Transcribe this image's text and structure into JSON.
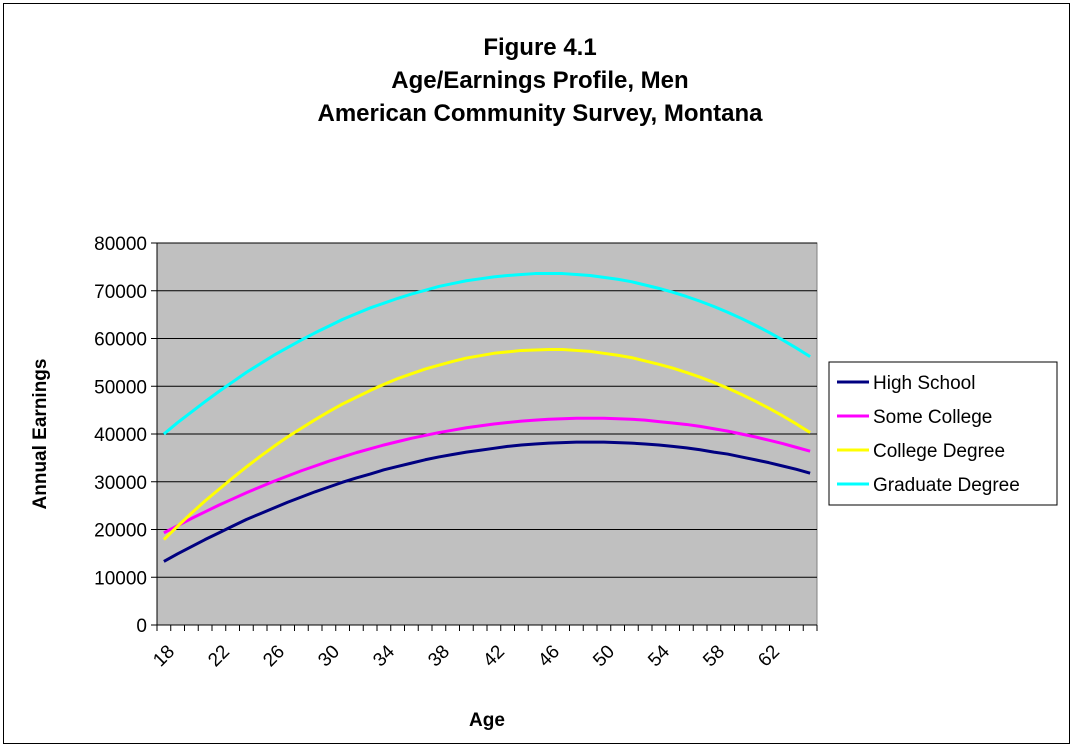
{
  "chart_data": {
    "type": "line",
    "title": [
      "Figure 4.1",
      "Age/Earnings Profile, Men",
      "American Community Survey, Montana"
    ],
    "xlabel": "Age",
    "ylabel": "Annual Earnings",
    "categories": [
      18,
      null,
      null,
      null,
      22,
      null,
      null,
      null,
      26,
      null,
      null,
      null,
      30,
      null,
      null,
      null,
      34,
      null,
      null,
      null,
      38,
      null,
      null,
      null,
      42,
      null,
      null,
      null,
      46,
      null,
      null,
      null,
      50,
      null,
      null,
      null,
      54,
      null,
      null,
      null,
      58,
      null,
      null,
      null,
      62,
      null,
      null,
      null
    ],
    "series": [
      {
        "name": "High School",
        "color": "#000080",
        "values": [
          13300,
          14900,
          16400,
          17900,
          19300,
          20700,
          22100,
          23300,
          24500,
          25700,
          26800,
          27900,
          28900,
          29900,
          30800,
          31600,
          32500,
          33200,
          33900,
          34600,
          35200,
          35700,
          36200,
          36600,
          37000,
          37400,
          37700,
          37900,
          38100,
          38200,
          38300,
          38300,
          38300,
          38200,
          38100,
          37900,
          37700,
          37400,
          37100,
          36700,
          36200,
          35800,
          35200,
          34600,
          34000,
          33300,
          32600,
          31800
        ]
      },
      {
        "name": "Some College",
        "color": "#ff00ff",
        "values": [
          19300,
          20800,
          22300,
          23700,
          25100,
          26400,
          27700,
          28900,
          30100,
          31200,
          32300,
          33300,
          34300,
          35200,
          36100,
          36900,
          37700,
          38400,
          39100,
          39700,
          40300,
          40800,
          41300,
          41700,
          42100,
          42400,
          42700,
          42900,
          43100,
          43200,
          43300,
          43300,
          43300,
          43200,
          43100,
          42900,
          42600,
          42300,
          42000,
          41600,
          41100,
          40600,
          40000,
          39400,
          38700,
          38000,
          37200,
          36400
        ]
      },
      {
        "name": "College Degree",
        "color": "#ffff00",
        "values": [
          17900,
          20700,
          23400,
          26000,
          28400,
          30800,
          33100,
          35300,
          37400,
          39400,
          41200,
          43000,
          44700,
          46300,
          47700,
          49100,
          50400,
          51600,
          52600,
          53600,
          54400,
          55200,
          55900,
          56400,
          56900,
          57200,
          57500,
          57600,
          57700,
          57700,
          57500,
          57300,
          56900,
          56500,
          56000,
          55300,
          54600,
          53800,
          52900,
          51900,
          50800,
          49600,
          48300,
          46900,
          45400,
          43800,
          42100,
          40300
        ]
      },
      {
        "name": "Graduate Degree",
        "color": "#00ffff",
        "values": [
          40000,
          42400,
          44600,
          46800,
          48900,
          50900,
          52900,
          54700,
          56500,
          58100,
          59700,
          61200,
          62600,
          64000,
          65200,
          66400,
          67400,
          68400,
          69300,
          70100,
          70900,
          71500,
          72100,
          72500,
          72900,
          73200,
          73400,
          73600,
          73600,
          73600,
          73400,
          73200,
          72800,
          72400,
          71900,
          71200,
          70500,
          69700,
          68800,
          67800,
          66700,
          65500,
          64200,
          62800,
          61300,
          59700,
          58000,
          56200
        ]
      }
    ],
    "ylim": [
      0,
      80000
    ],
    "yticks": [
      0,
      10000,
      20000,
      30000,
      40000,
      50000,
      60000,
      70000,
      80000
    ],
    "grid": true,
    "legend": "right",
    "plot_background": "#c0c0c0"
  }
}
